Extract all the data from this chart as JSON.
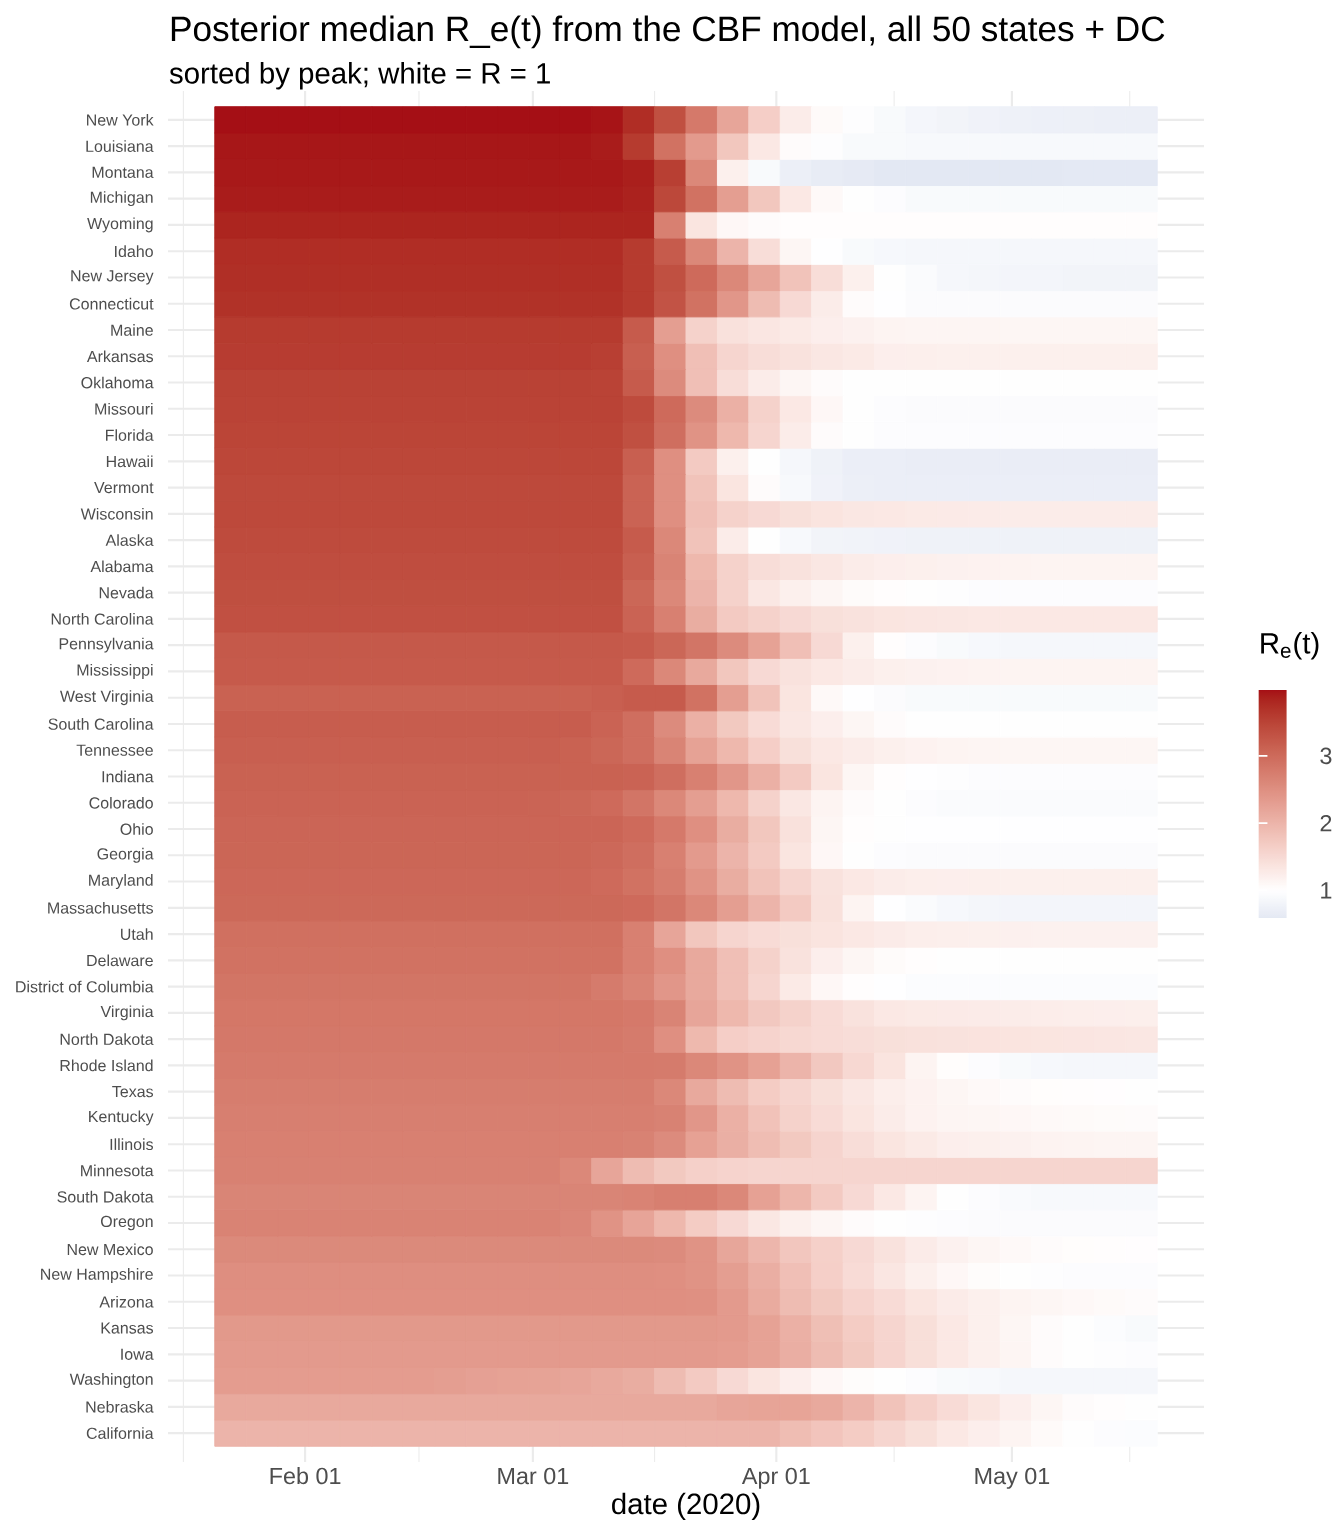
{
  "chart_data": {
    "type": "heatmap",
    "title": "Posterior median R_e(t) from the CBF model, all 50 states + DC",
    "subtitle": "sorted by peak; white = R = 1",
    "xlabel": "date (2020)",
    "clabel": "R$_{e}$(t)",
    "x": [
      "2020-01-22T12:00",
      "2020-01-26T12:00",
      "2020-01-30T12:00",
      "2020-02-03T12:00",
      "2020-02-07T12:00",
      "2020-02-11T12:00",
      "2020-02-15T12:00",
      "2020-02-19T12:00",
      "2020-02-23T12:00",
      "2020-02-27T12:00",
      "2020-03-02T12:00",
      "2020-03-06T12:00",
      "2020-03-10T12:00",
      "2020-03-14T12:00",
      "2020-03-18T12:00",
      "2020-03-22T12:00",
      "2020-03-26T12:00",
      "2020-03-30T12:00",
      "2020-04-03T12:00",
      "2020-04-07T12:00",
      "2020-04-11T12:00",
      "2020-04-15T12:00",
      "2020-04-19T12:00",
      "2020-04-23T12:00",
      "2020-04-27T12:00",
      "2020-05-01T12:00",
      "2020-05-05T12:00",
      "2020-05-09T12:00",
      "2020-05-13T12:00",
      "2020-05-17T12:00"
    ],
    "xlim": [
      "2020-01-14T13:00",
      "2020-05-25T11:00"
    ],
    "xticks": [
      {
        "value": "2020-01-16T12:00",
        "label": null
      },
      {
        "value": "2020-02-01",
        "label": "Feb 01"
      },
      {
        "value": "2020-02-15T12:00",
        "label": null
      },
      {
        "value": "2020-03-01",
        "label": "Mar 01"
      },
      {
        "value": "2020-03-16T12:00",
        "label": null
      },
      {
        "value": "2020-04-01",
        "label": "Apr 01"
      },
      {
        "value": "2020-04-16",
        "label": null
      },
      {
        "value": "2020-05-01",
        "label": "May 01"
      },
      {
        "value": "2020-05-16",
        "label": null
      }
    ],
    "y_categories": [
      "New York",
      "Louisiana",
      "Montana",
      "Michigan",
      "Wyoming",
      "Idaho",
      "New Jersey",
      "Connecticut",
      "Maine",
      "Arkansas",
      "Oklahoma",
      "Missouri",
      "Florida",
      "Hawaii",
      "Vermont",
      "Wisconsin",
      "Alaska",
      "Alabama",
      "Nevada",
      "North Carolina",
      "Pennsylvania",
      "Mississippi",
      "West Virginia",
      "South Carolina",
      "Tennessee",
      "Indiana",
      "Colorado",
      "Ohio",
      "Georgia",
      "Maryland",
      "Massachusetts",
      "Utah",
      "Delaware",
      "District of Columbia",
      "Virginia",
      "North Dakota",
      "Rhode Island",
      "Texas",
      "Kentucky",
      "Illinois",
      "Minnesota",
      "South Dakota",
      "Oregon",
      "New Mexico",
      "New Hampshire",
      "Arizona",
      "Kansas",
      "Iowa",
      "Washington",
      "Nebraska",
      "California"
    ],
    "cells": [
      [
        3.98,
        3.98,
        3.98,
        3.98,
        3.98,
        3.98,
        3.98,
        3.98,
        3.98,
        3.98,
        3.98,
        3.98,
        3.95,
        3.75,
        3.35,
        2.8,
        2.2,
        1.65,
        1.25,
        1.07,
        0.97,
        0.9,
        0.84,
        0.8,
        0.77,
        0.75,
        0.74,
        0.73,
        0.72,
        0.72
      ],
      [
        3.93,
        3.93,
        3.93,
        3.93,
        3.93,
        3.93,
        3.93,
        3.93,
        3.93,
        3.93,
        3.93,
        3.93,
        3.9,
        3.6,
        2.9,
        2.35,
        1.75,
        1.3,
        1.05,
        0.97,
        0.9,
        0.9,
        0.89,
        0.88,
        0.88,
        0.88,
        0.88,
        0.88,
        0.88,
        0.88
      ],
      [
        3.92,
        3.92,
        3.92,
        3.92,
        3.92,
        3.92,
        3.92,
        3.92,
        3.92,
        3.92,
        3.92,
        3.92,
        3.92,
        3.88,
        3.55,
        2.6,
        1.2,
        0.9,
        0.72,
        0.65,
        0.62,
        0.58,
        0.58,
        0.58,
        0.58,
        0.58,
        0.58,
        0.6,
        0.6,
        0.6
      ],
      [
        3.9,
        3.9,
        3.9,
        3.9,
        3.9,
        3.9,
        3.9,
        3.9,
        3.9,
        3.9,
        3.9,
        3.9,
        3.9,
        3.85,
        3.45,
        2.9,
        2.3,
        1.75,
        1.3,
        1.08,
        1.0,
        0.95,
        0.9,
        0.9,
        0.9,
        0.9,
        0.9,
        0.9,
        0.9,
        0.9
      ],
      [
        3.83,
        3.83,
        3.83,
        3.83,
        3.83,
        3.83,
        3.83,
        3.83,
        3.83,
        3.83,
        3.83,
        3.83,
        3.83,
        3.83,
        2.7,
        1.35,
        1.1,
        1.05,
        1.02,
        1.02,
        1.02,
        1.02,
        1.02,
        1.02,
        1.02,
        1.02,
        1.02,
        1.02,
        1.02,
        1.02
      ],
      [
        3.75,
        3.75,
        3.75,
        3.75,
        3.75,
        3.75,
        3.75,
        3.75,
        3.75,
        3.75,
        3.75,
        3.75,
        3.75,
        3.6,
        3.2,
        2.6,
        2.0,
        1.45,
        1.12,
        0.98,
        0.9,
        0.87,
        0.86,
        0.86,
        0.86,
        0.85,
        0.85,
        0.85,
        0.85,
        0.85
      ],
      [
        3.73,
        3.73,
        3.73,
        3.73,
        3.73,
        3.73,
        3.73,
        3.73,
        3.73,
        3.73,
        3.73,
        3.73,
        3.73,
        3.6,
        3.35,
        3.0,
        2.6,
        2.2,
        1.8,
        1.45,
        1.2,
        1.0,
        0.92,
        0.85,
        0.83,
        0.82,
        0.81,
        0.8,
        0.8,
        0.8
      ],
      [
        3.7,
        3.7,
        3.7,
        3.7,
        3.7,
        3.7,
        3.7,
        3.7,
        3.7,
        3.7,
        3.7,
        3.7,
        3.7,
        3.6,
        3.3,
        2.9,
        2.4,
        1.9,
        1.5,
        1.25,
        1.05,
        0.98,
        0.93,
        0.93,
        0.93,
        0.93,
        0.93,
        0.93,
        0.93,
        0.93
      ],
      [
        3.6,
        3.6,
        3.6,
        3.6,
        3.6,
        3.6,
        3.6,
        3.6,
        3.6,
        3.6,
        3.6,
        3.6,
        3.6,
        3.2,
        2.3,
        1.6,
        1.4,
        1.33,
        1.28,
        1.22,
        1.18,
        1.15,
        1.14,
        1.13,
        1.13,
        1.12,
        1.12,
        1.12,
        1.12,
        1.12
      ],
      [
        3.58,
        3.58,
        3.58,
        3.58,
        3.58,
        3.58,
        3.58,
        3.58,
        3.58,
        3.58,
        3.58,
        3.58,
        3.55,
        3.15,
        2.5,
        1.85,
        1.55,
        1.45,
        1.38,
        1.32,
        1.28,
        1.22,
        1.21,
        1.2,
        1.2,
        1.2,
        1.2,
        1.2,
        1.2,
        1.2
      ],
      [
        3.52,
        3.52,
        3.52,
        3.52,
        3.52,
        3.52,
        3.52,
        3.52,
        3.52,
        3.52,
        3.52,
        3.52,
        3.5,
        3.2,
        2.55,
        1.85,
        1.45,
        1.25,
        1.12,
        1.05,
        1.0,
        1.0,
        1.0,
        1.0,
        1.0,
        1.0,
        1.0,
        1.0,
        1.0,
        1.0
      ],
      [
        3.5,
        3.5,
        3.5,
        3.5,
        3.5,
        3.5,
        3.5,
        3.5,
        3.5,
        3.5,
        3.5,
        3.5,
        3.5,
        3.4,
        3.0,
        2.55,
        2.05,
        1.6,
        1.3,
        1.1,
        1.0,
        0.95,
        0.93,
        0.93,
        0.93,
        0.93,
        0.93,
        0.93,
        0.93,
        0.93
      ],
      [
        3.48,
        3.48,
        3.48,
        3.48,
        3.48,
        3.48,
        3.48,
        3.48,
        3.48,
        3.48,
        3.48,
        3.48,
        3.48,
        3.35,
        2.95,
        2.45,
        1.95,
        1.55,
        1.25,
        1.05,
        1.0,
        0.96,
        0.95,
        0.95,
        0.95,
        0.95,
        0.95,
        0.95,
        0.95,
        0.95
      ],
      [
        3.46,
        3.46,
        3.46,
        3.46,
        3.46,
        3.46,
        3.46,
        3.46,
        3.46,
        3.46,
        3.46,
        3.46,
        3.46,
        3.15,
        2.5,
        1.7,
        1.2,
        1.0,
        0.85,
        0.76,
        0.7,
        0.7,
        0.69,
        0.68,
        0.68,
        0.68,
        0.68,
        0.68,
        0.68,
        0.68
      ],
      [
        3.44,
        3.44,
        3.44,
        3.44,
        3.44,
        3.44,
        3.44,
        3.44,
        3.44,
        3.44,
        3.44,
        3.44,
        3.44,
        3.1,
        2.5,
        1.8,
        1.35,
        1.05,
        0.88,
        0.77,
        0.72,
        0.7,
        0.7,
        0.7,
        0.7,
        0.7,
        0.7,
        0.7,
        0.7,
        0.7
      ],
      [
        3.43,
        3.43,
        3.43,
        3.43,
        3.43,
        3.43,
        3.43,
        3.43,
        3.43,
        3.43,
        3.43,
        3.43,
        3.43,
        3.1,
        2.5,
        1.85,
        1.6,
        1.5,
        1.42,
        1.36,
        1.32,
        1.3,
        1.28,
        1.27,
        1.26,
        1.25,
        1.25,
        1.25,
        1.25,
        1.25
      ],
      [
        3.41,
        3.41,
        3.41,
        3.41,
        3.41,
        3.41,
        3.41,
        3.41,
        3.41,
        3.41,
        3.41,
        3.41,
        3.41,
        3.2,
        2.6,
        1.8,
        1.25,
        1.0,
        0.88,
        0.8,
        0.78,
        0.77,
        0.76,
        0.76,
        0.76,
        0.76,
        0.76,
        0.76,
        0.76,
        0.76
      ],
      [
        3.38,
        3.38,
        3.38,
        3.38,
        3.38,
        3.38,
        3.38,
        3.38,
        3.38,
        3.38,
        3.38,
        3.38,
        3.38,
        3.15,
        2.65,
        1.95,
        1.6,
        1.45,
        1.38,
        1.32,
        1.25,
        1.22,
        1.2,
        1.18,
        1.17,
        1.16,
        1.15,
        1.15,
        1.15,
        1.15
      ],
      [
        3.36,
        3.36,
        3.36,
        3.36,
        3.36,
        3.36,
        3.36,
        3.36,
        3.36,
        3.36,
        3.36,
        3.36,
        3.36,
        3.05,
        2.6,
        2.0,
        1.6,
        1.32,
        1.2,
        1.12,
        1.06,
        1.02,
        1.0,
        0.97,
        0.95,
        0.95,
        0.95,
        0.95,
        0.95,
        0.95
      ],
      [
        3.34,
        3.34,
        3.34,
        3.34,
        3.34,
        3.34,
        3.34,
        3.34,
        3.34,
        3.34,
        3.34,
        3.34,
        3.34,
        3.1,
        2.7,
        2.1,
        1.7,
        1.6,
        1.5,
        1.42,
        1.38,
        1.35,
        1.33,
        1.32,
        1.31,
        1.3,
        1.3,
        1.3,
        1.3,
        1.3
      ],
      [
        3.23,
        3.23,
        3.23,
        3.23,
        3.23,
        3.23,
        3.23,
        3.23,
        3.23,
        3.23,
        3.23,
        3.23,
        3.23,
        3.2,
        3.05,
        2.85,
        2.55,
        2.25,
        1.85,
        1.5,
        1.2,
        1.02,
        0.95,
        0.9,
        0.87,
        0.86,
        0.85,
        0.85,
        0.85,
        0.85
      ],
      [
        3.21,
        3.21,
        3.21,
        3.21,
        3.21,
        3.21,
        3.21,
        3.21,
        3.21,
        3.21,
        3.21,
        3.21,
        3.21,
        3.0,
        2.6,
        2.15,
        1.75,
        1.5,
        1.38,
        1.3,
        1.25,
        1.2,
        1.18,
        1.17,
        1.16,
        1.15,
        1.15,
        1.15,
        1.15,
        1.15
      ],
      [
        3.12,
        3.12,
        3.12,
        3.12,
        3.12,
        3.12,
        3.12,
        3.12,
        3.12,
        3.12,
        3.12,
        3.12,
        3.15,
        3.2,
        3.2,
        2.9,
        2.3,
        1.8,
        1.35,
        1.08,
        0.98,
        0.93,
        0.9,
        0.9,
        0.9,
        0.9,
        0.9,
        0.9,
        0.9,
        0.9
      ],
      [
        3.17,
        3.17,
        3.17,
        3.17,
        3.17,
        3.17,
        3.17,
        3.17,
        3.17,
        3.17,
        3.17,
        3.17,
        3.1,
        2.95,
        2.55,
        2.05,
        1.72,
        1.48,
        1.32,
        1.22,
        1.12,
        1.05,
        1.0,
        1.0,
        1.0,
        1.0,
        1.0,
        1.0,
        1.0,
        1.0
      ],
      [
        3.15,
        3.15,
        3.15,
        3.15,
        3.15,
        3.15,
        3.15,
        3.15,
        3.15,
        3.15,
        3.15,
        3.12,
        3.05,
        2.95,
        2.65,
        2.25,
        1.95,
        1.65,
        1.42,
        1.3,
        1.25,
        1.2,
        1.17,
        1.15,
        1.13,
        1.12,
        1.12,
        1.12,
        1.12,
        1.12
      ],
      [
        3.12,
        3.12,
        3.12,
        3.12,
        3.12,
        3.12,
        3.12,
        3.12,
        3.12,
        3.12,
        3.12,
        3.12,
        3.12,
        3.1,
        2.95,
        2.7,
        2.4,
        2.05,
        1.7,
        1.35,
        1.12,
        1.02,
        0.98,
        0.97,
        0.96,
        0.96,
        0.96,
        0.96,
        0.96,
        0.96
      ],
      [
        3.1,
        3.1,
        3.1,
        3.1,
        3.1,
        3.1,
        3.1,
        3.1,
        3.1,
        3.1,
        3.08,
        3.05,
        3.0,
        2.85,
        2.6,
        2.3,
        1.95,
        1.6,
        1.32,
        1.15,
        1.05,
        1.0,
        0.96,
        0.92,
        0.92,
        0.92,
        0.92,
        0.92,
        0.92,
        0.92
      ],
      [
        3.07,
        3.07,
        3.07,
        3.07,
        3.07,
        3.07,
        3.07,
        3.07,
        3.07,
        3.07,
        3.07,
        3.07,
        3.07,
        3.0,
        2.8,
        2.5,
        2.1,
        1.75,
        1.4,
        1.12,
        1.02,
        1.0,
        0.98,
        0.98,
        0.98,
        0.98,
        0.98,
        0.98,
        0.98,
        0.98
      ],
      [
        3.06,
        3.06,
        3.06,
        3.06,
        3.06,
        3.06,
        3.06,
        3.06,
        3.06,
        3.06,
        3.06,
        3.06,
        3.03,
        2.95,
        2.7,
        2.35,
        2.0,
        1.7,
        1.35,
        1.1,
        1.0,
        0.96,
        0.93,
        0.93,
        0.93,
        0.93,
        0.93,
        0.93,
        0.93,
        0.93
      ],
      [
        3.04,
        3.04,
        3.04,
        3.04,
        3.04,
        3.04,
        3.04,
        3.04,
        3.04,
        3.04,
        3.04,
        3.04,
        3.0,
        2.9,
        2.75,
        2.45,
        2.1,
        1.8,
        1.55,
        1.38,
        1.3,
        1.25,
        1.23,
        1.22,
        1.21,
        1.2,
        1.2,
        1.2,
        1.2,
        1.2
      ],
      [
        3.02,
        3.02,
        3.02,
        3.02,
        3.02,
        3.02,
        3.02,
        3.02,
        3.02,
        3.02,
        3.02,
        3.02,
        3.02,
        3.0,
        2.85,
        2.6,
        2.3,
        2.0,
        1.7,
        1.4,
        1.15,
        0.98,
        0.92,
        0.87,
        0.83,
        0.82,
        0.82,
        0.82,
        0.82,
        0.82
      ],
      [
        2.93,
        2.93,
        2.93,
        2.93,
        2.93,
        2.93,
        2.93,
        2.93,
        2.93,
        2.93,
        2.93,
        2.93,
        2.93,
        2.7,
        2.2,
        1.75,
        1.55,
        1.48,
        1.42,
        1.36,
        1.3,
        1.26,
        1.23,
        1.21,
        1.2,
        1.19,
        1.18,
        1.18,
        1.18,
        1.18
      ],
      [
        2.9,
        2.9,
        2.9,
        2.9,
        2.9,
        2.9,
        2.9,
        2.9,
        2.9,
        2.9,
        2.9,
        2.9,
        2.9,
        2.7,
        2.5,
        2.15,
        1.85,
        1.6,
        1.38,
        1.22,
        1.12,
        1.06,
        1.02,
        1.0,
        1.0,
        1.0,
        1.0,
        1.0,
        1.0,
        1.0
      ],
      [
        2.86,
        2.86,
        2.86,
        2.86,
        2.86,
        2.86,
        2.86,
        2.86,
        2.86,
        2.86,
        2.86,
        2.86,
        2.78,
        2.65,
        2.4,
        2.15,
        1.85,
        1.55,
        1.28,
        1.1,
        1.02,
        0.98,
        0.94,
        0.94,
        0.94,
        0.94,
        0.94,
        0.94,
        0.94,
        0.94
      ],
      [
        2.83,
        2.83,
        2.83,
        2.83,
        2.83,
        2.83,
        2.83,
        2.83,
        2.83,
        2.83,
        2.83,
        2.83,
        2.83,
        2.8,
        2.65,
        2.2,
        1.95,
        1.73,
        1.6,
        1.47,
        1.38,
        1.31,
        1.28,
        1.27,
        1.26,
        1.25,
        1.24,
        1.23,
        1.22,
        1.21
      ],
      [
        2.81,
        2.81,
        2.81,
        2.81,
        2.81,
        2.81,
        2.81,
        2.81,
        2.81,
        2.81,
        2.81,
        2.81,
        2.81,
        2.78,
        2.5,
        1.94,
        1.65,
        1.58,
        1.52,
        1.48,
        1.45,
        1.42,
        1.4,
        1.38,
        1.37,
        1.36,
        1.35,
        1.34,
        1.33,
        1.32
      ],
      [
        2.79,
        2.79,
        2.79,
        2.79,
        2.79,
        2.79,
        2.79,
        2.79,
        2.79,
        2.79,
        2.79,
        2.79,
        2.79,
        2.79,
        2.78,
        2.6,
        2.45,
        2.26,
        2.0,
        1.73,
        1.52,
        1.36,
        1.15,
        1.03,
        0.95,
        0.9,
        0.87,
        0.86,
        0.86,
        0.86
      ],
      [
        2.75,
        2.75,
        2.75,
        2.75,
        2.75,
        2.75,
        2.75,
        2.75,
        2.75,
        2.75,
        2.75,
        2.75,
        2.75,
        2.75,
        2.6,
        2.15,
        1.9,
        1.68,
        1.55,
        1.43,
        1.32,
        1.23,
        1.17,
        1.12,
        1.08,
        1.05,
        1.03,
        1.02,
        1.01,
        1.0
      ],
      [
        2.72,
        2.72,
        2.72,
        2.72,
        2.72,
        2.72,
        2.72,
        2.72,
        2.72,
        2.72,
        2.72,
        2.72,
        2.72,
        2.72,
        2.68,
        2.4,
        2.05,
        1.82,
        1.6,
        1.47,
        1.35,
        1.25,
        1.17,
        1.14,
        1.12,
        1.1,
        1.08,
        1.07,
        1.06,
        1.05
      ],
      [
        2.7,
        2.7,
        2.7,
        2.7,
        2.7,
        2.7,
        2.7,
        2.7,
        2.7,
        2.7,
        2.7,
        2.7,
        2.7,
        2.68,
        2.55,
        2.26,
        2.07,
        1.88,
        1.72,
        1.57,
        1.45,
        1.35,
        1.28,
        1.22,
        1.2,
        1.18,
        1.16,
        1.15,
        1.14,
        1.13
      ],
      [
        2.69,
        2.69,
        2.69,
        2.69,
        2.69,
        2.69,
        2.69,
        2.69,
        2.69,
        2.69,
        2.69,
        2.6,
        2.2,
        1.9,
        1.72,
        1.62,
        1.58,
        1.55,
        1.55,
        1.55,
        1.55,
        1.55,
        1.55,
        1.55,
        1.55,
        1.55,
        1.55,
        1.55,
        1.55,
        1.55
      ],
      [
        2.64,
        2.64,
        2.64,
        2.64,
        2.64,
        2.64,
        2.64,
        2.64,
        2.64,
        2.64,
        2.64,
        2.64,
        2.64,
        2.66,
        2.72,
        2.72,
        2.6,
        2.26,
        1.98,
        1.7,
        1.5,
        1.31,
        1.15,
        1.0,
        0.95,
        0.91,
        0.88,
        0.88,
        0.88,
        0.88
      ],
      [
        2.66,
        2.66,
        2.66,
        2.66,
        2.66,
        2.66,
        2.66,
        2.66,
        2.66,
        2.66,
        2.66,
        2.62,
        2.45,
        2.21,
        1.95,
        1.68,
        1.5,
        1.32,
        1.2,
        1.12,
        1.05,
        1.0,
        0.97,
        0.95,
        0.93,
        0.93,
        0.93,
        0.93,
        0.93,
        0.93
      ],
      [
        2.57,
        2.57,
        2.57,
        2.57,
        2.57,
        2.57,
        2.57,
        2.57,
        2.57,
        2.57,
        2.57,
        2.57,
        2.57,
        2.57,
        2.55,
        2.45,
        2.19,
        1.97,
        1.76,
        1.62,
        1.5,
        1.38,
        1.26,
        1.18,
        1.12,
        1.08,
        1.05,
        1.03,
        1.02,
        1.01
      ],
      [
        2.52,
        2.52,
        2.52,
        2.52,
        2.52,
        2.52,
        2.52,
        2.52,
        2.52,
        2.52,
        2.52,
        2.52,
        2.52,
        2.52,
        2.5,
        2.45,
        2.3,
        2.08,
        1.85,
        1.63,
        1.47,
        1.33,
        1.2,
        1.1,
        1.04,
        1.0,
        0.97,
        0.96,
        0.96,
        0.96
      ],
      [
        2.5,
        2.5,
        2.5,
        2.5,
        2.5,
        2.5,
        2.5,
        2.5,
        2.5,
        2.5,
        2.5,
        2.5,
        2.5,
        2.5,
        2.5,
        2.48,
        2.35,
        2.12,
        1.9,
        1.72,
        1.58,
        1.47,
        1.35,
        1.26,
        1.2,
        1.15,
        1.12,
        1.09,
        1.07,
        1.05
      ],
      [
        2.37,
        2.37,
        2.37,
        2.37,
        2.37,
        2.37,
        2.37,
        2.37,
        2.37,
        2.37,
        2.37,
        2.37,
        2.37,
        2.37,
        2.37,
        2.37,
        2.35,
        2.25,
        2.05,
        1.86,
        1.68,
        1.55,
        1.43,
        1.3,
        1.2,
        1.12,
        1.05,
        1.0,
        0.94,
        0.9
      ],
      [
        2.35,
        2.35,
        2.35,
        2.35,
        2.35,
        2.35,
        2.35,
        2.35,
        2.35,
        2.35,
        2.35,
        2.35,
        2.35,
        2.35,
        2.35,
        2.35,
        2.33,
        2.25,
        2.08,
        1.9,
        1.72,
        1.57,
        1.43,
        1.3,
        1.2,
        1.13,
        1.05,
        1.0,
        0.97,
        0.96
      ],
      [
        2.33,
        2.33,
        2.33,
        2.33,
        2.33,
        2.33,
        2.33,
        2.3,
        2.27,
        2.25,
        2.23,
        2.2,
        2.15,
        2.1,
        1.9,
        1.7,
        1.5,
        1.35,
        1.22,
        1.1,
        1.04,
        1.0,
        0.95,
        0.9,
        0.88,
        0.86,
        0.85,
        0.85,
        0.85,
        0.85
      ],
      [
        2.15,
        2.15,
        2.15,
        2.15,
        2.15,
        2.15,
        2.15,
        2.15,
        2.15,
        2.15,
        2.15,
        2.15,
        2.15,
        2.15,
        2.15,
        2.15,
        2.2,
        2.22,
        2.22,
        2.15,
        2.0,
        1.8,
        1.62,
        1.47,
        1.35,
        1.22,
        1.12,
        1.05,
        1.02,
        1.0
      ],
      [
        2.0,
        2.0,
        2.0,
        2.0,
        2.0,
        2.0,
        2.0,
        2.0,
        2.0,
        2.0,
        2.0,
        2.0,
        2.0,
        2.0,
        2.0,
        2.0,
        2.0,
        2.0,
        1.88,
        1.78,
        1.68,
        1.55,
        1.43,
        1.3,
        1.22,
        1.15,
        1.07,
        1.0,
        0.96,
        0.94
      ]
    ],
    "clim": [
      0.58,
      3.98
    ],
    "cticks": [
      1,
      2,
      3
    ],
    "grid": true
  }
}
